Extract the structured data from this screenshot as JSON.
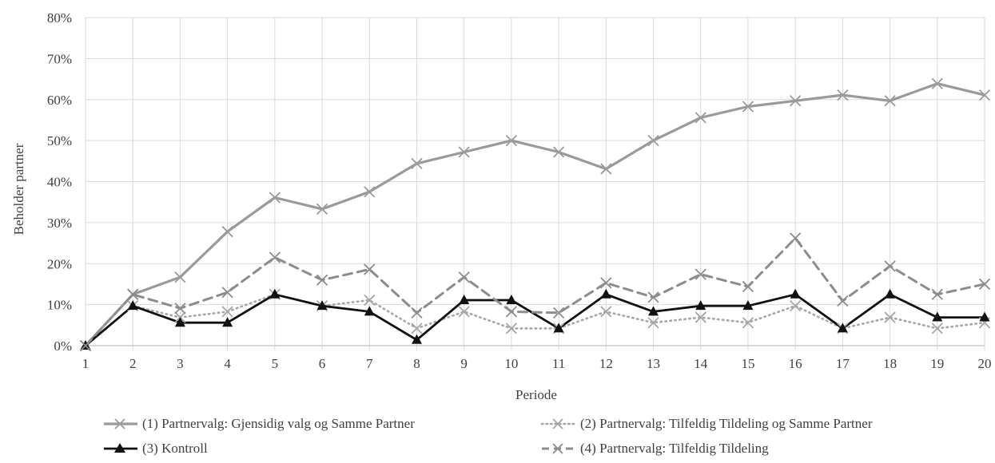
{
  "chart_data": {
    "type": "line",
    "title": "",
    "xlabel": "Periode",
    "ylabel": "Beholder partner",
    "categories": [
      "1",
      "2",
      "3",
      "4",
      "5",
      "6",
      "7",
      "8",
      "9",
      "10",
      "11",
      "12",
      "13",
      "14",
      "15",
      "16",
      "17",
      "18",
      "19",
      "20"
    ],
    "y_ticks": [
      "0%",
      "10%",
      "20%",
      "30%",
      "40%",
      "50%",
      "60%",
      "70%",
      "80%"
    ],
    "ylim": [
      0,
      80
    ],
    "grid": true,
    "legend_position": "bottom",
    "series": [
      {
        "name": "(1) Partnervalg: Gjensidig valg og Samme Partner",
        "marker": "x",
        "dash": "solid",
        "color": "#9a9a9a",
        "width": 3.2,
        "values": [
          0,
          12.5,
          16.7,
          27.8,
          36.1,
          33.3,
          37.5,
          44.4,
          47.2,
          50.0,
          47.2,
          43.1,
          50.0,
          55.6,
          58.3,
          59.7,
          61.1,
          59.7,
          63.9,
          61.1
        ]
      },
      {
        "name": "(2) Partnervalg: Tilfeldig Tildeling og Samme Partner",
        "marker": "x",
        "dash": "dot",
        "color": "#a6a6a6",
        "width": 2.6,
        "values": [
          0,
          9.7,
          6.9,
          8.3,
          12.5,
          9.7,
          11.1,
          4.2,
          8.3,
          4.2,
          4.2,
          8.3,
          5.6,
          6.9,
          5.6,
          9.7,
          4.2,
          6.9,
          4.2,
          5.6
        ]
      },
      {
        "name": "(3) Kontroll",
        "marker": "triangle",
        "dash": "solid",
        "color": "#111111",
        "width": 2.8,
        "values": [
          0,
          9.7,
          5.6,
          5.6,
          12.5,
          9.7,
          8.3,
          1.4,
          11.1,
          11.1,
          4.2,
          12.5,
          8.3,
          9.7,
          9.7,
          12.5,
          4.2,
          12.5,
          6.9,
          6.9
        ]
      },
      {
        "name": "(4) Partnervalg: Tilfeldig Tildeling",
        "marker": "x",
        "dash": "dash",
        "color": "#8c8c8c",
        "width": 3.0,
        "values": [
          0,
          12.5,
          9.1,
          13.0,
          21.5,
          16.0,
          18.6,
          8.0,
          16.7,
          8.3,
          8.0,
          15.3,
          11.8,
          17.4,
          14.4,
          26.2,
          10.9,
          19.4,
          12.5,
          15.0
        ]
      }
    ]
  }
}
